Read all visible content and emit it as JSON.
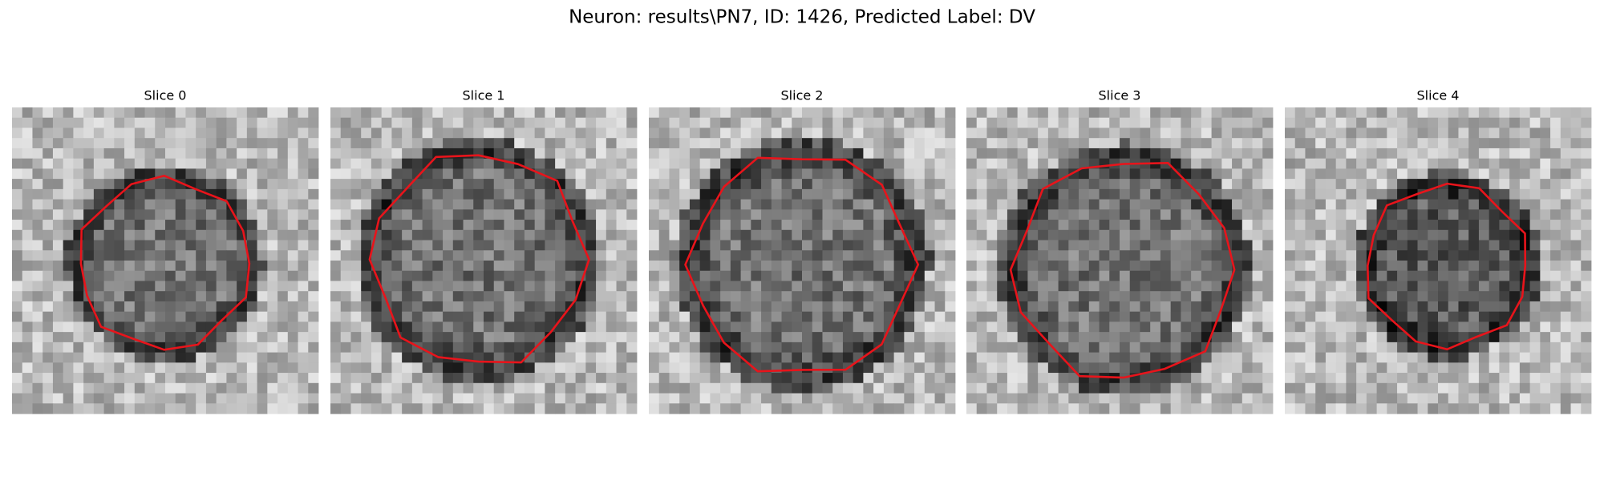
{
  "title": "Neuron: results\\PN7, ID: 1426, Predicted Label: DV",
  "panels": [
    {
      "title": "Slice 0"
    },
    {
      "title": "Slice 1"
    },
    {
      "title": "Slice 2"
    },
    {
      "title": "Slice 3"
    },
    {
      "title": "Slice 4"
    }
  ]
}
